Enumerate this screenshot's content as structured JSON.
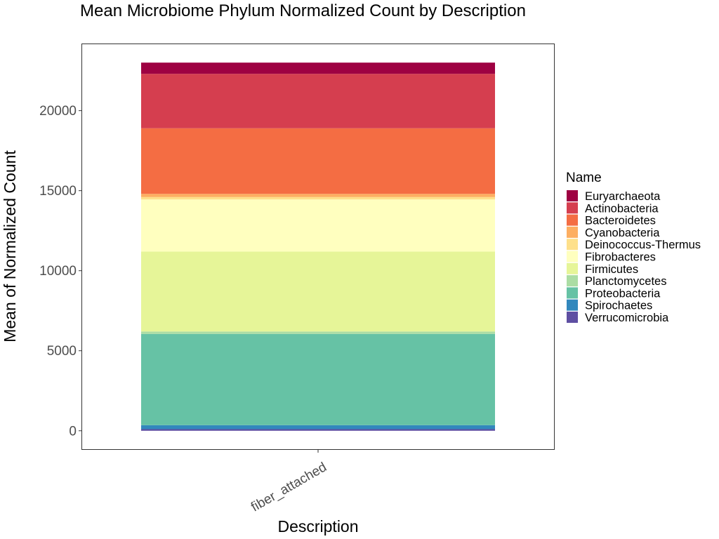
{
  "chart_data": {
    "type": "bar",
    "stacked": true,
    "title": "Mean Microbiome Phylum Normalized Count by Description",
    "xlabel": "Description",
    "ylabel": "Mean of Normalized Count",
    "categories": [
      "fiber_attached"
    ],
    "y_ticks": [
      0,
      5000,
      10000,
      15000,
      20000
    ],
    "ylim": [
      -1150,
      24150
    ],
    "grid": false,
    "legend": {
      "title": "Name",
      "placement": "right"
    },
    "series": [
      {
        "name": "Euryarchaeota",
        "color": "#9E0142",
        "values": [
          700
        ]
      },
      {
        "name": "Actinobacteria",
        "color": "#D53E4F",
        "values": [
          3400
        ]
      },
      {
        "name": "Bacteroidetes",
        "color": "#F46D43",
        "values": [
          4100
        ]
      },
      {
        "name": "Cyanobacteria",
        "color": "#FDAE61",
        "values": [
          200
        ]
      },
      {
        "name": "Deinococcus-Thermus",
        "color": "#FEE08B",
        "values": [
          150
        ]
      },
      {
        "name": "Fibrobacteres",
        "color": "#FFFFBF",
        "values": [
          3250
        ]
      },
      {
        "name": "Firmicutes",
        "color": "#E6F598",
        "values": [
          5000
        ]
      },
      {
        "name": "Planctomycetes",
        "color": "#ABDDA4",
        "values": [
          150
        ]
      },
      {
        "name": "Proteobacteria",
        "color": "#66C2A5",
        "values": [
          5700
        ]
      },
      {
        "name": "Spirochaetes",
        "color": "#3288BD",
        "values": [
          250
        ]
      },
      {
        "name": "Verrucomicrobia",
        "color": "#5E4FA2",
        "values": [
          100
        ]
      }
    ]
  }
}
